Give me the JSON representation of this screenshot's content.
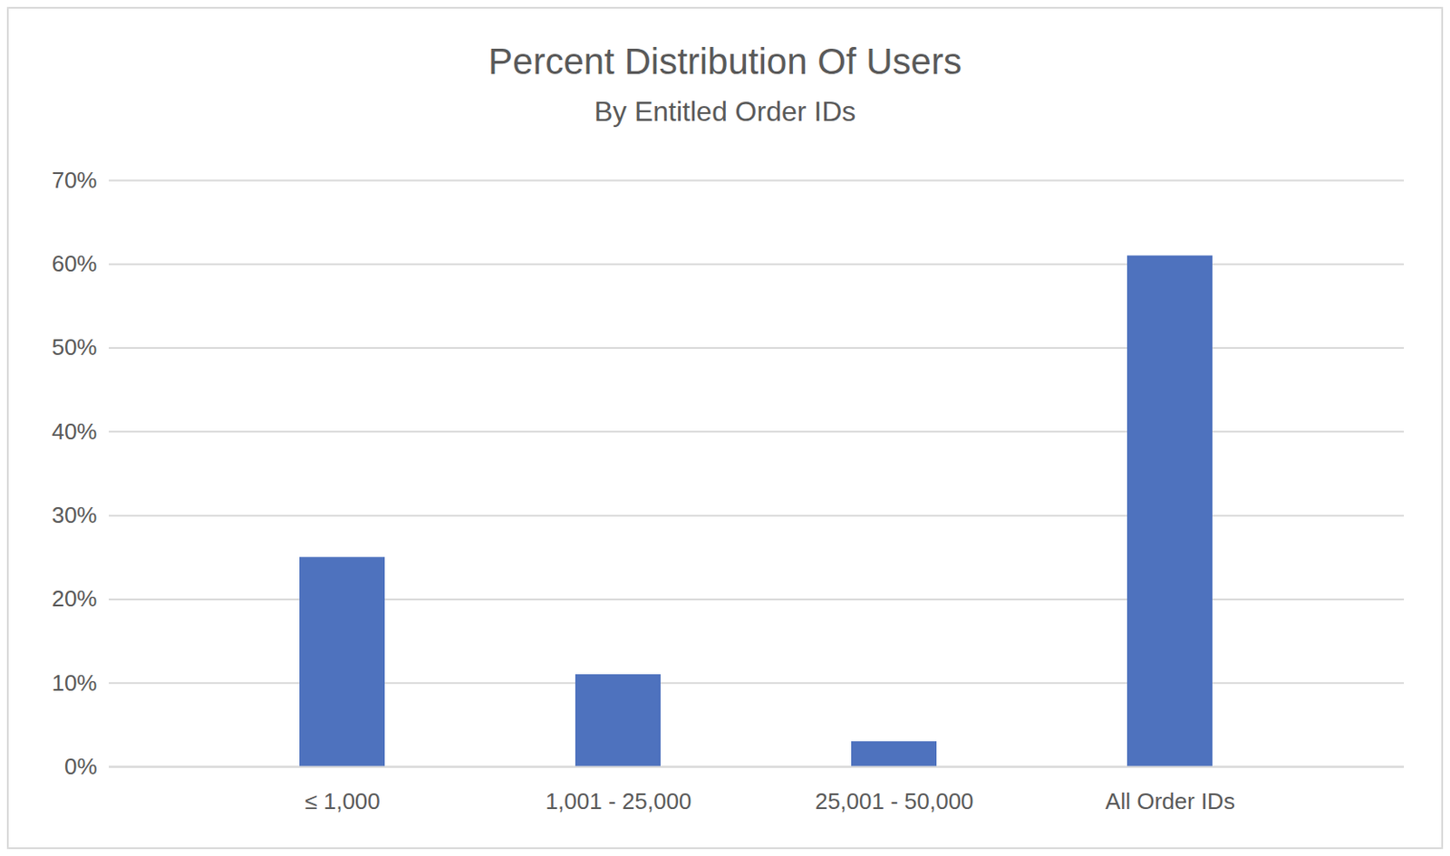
{
  "chart_data": {
    "type": "bar",
    "title": "Percent Distribution Of Users",
    "subtitle": "By Entitled Order IDs",
    "categories": [
      "≤ 1,000",
      "1,001 - 25,000",
      "25,001 - 50,000",
      "All Order IDs"
    ],
    "values": [
      25,
      11,
      3,
      61
    ],
    "color": "#4e72be",
    "ylim": [
      0,
      70
    ],
    "yticks": [
      {
        "value": 0,
        "label": "0%"
      },
      {
        "value": 10,
        "label": "10%"
      },
      {
        "value": 20,
        "label": "20%"
      },
      {
        "value": 30,
        "label": "30%"
      },
      {
        "value": 40,
        "label": "40%"
      },
      {
        "value": 50,
        "label": "50%"
      },
      {
        "value": 60,
        "label": "60%"
      },
      {
        "value": 70,
        "label": "70%"
      }
    ],
    "grid": true
  }
}
